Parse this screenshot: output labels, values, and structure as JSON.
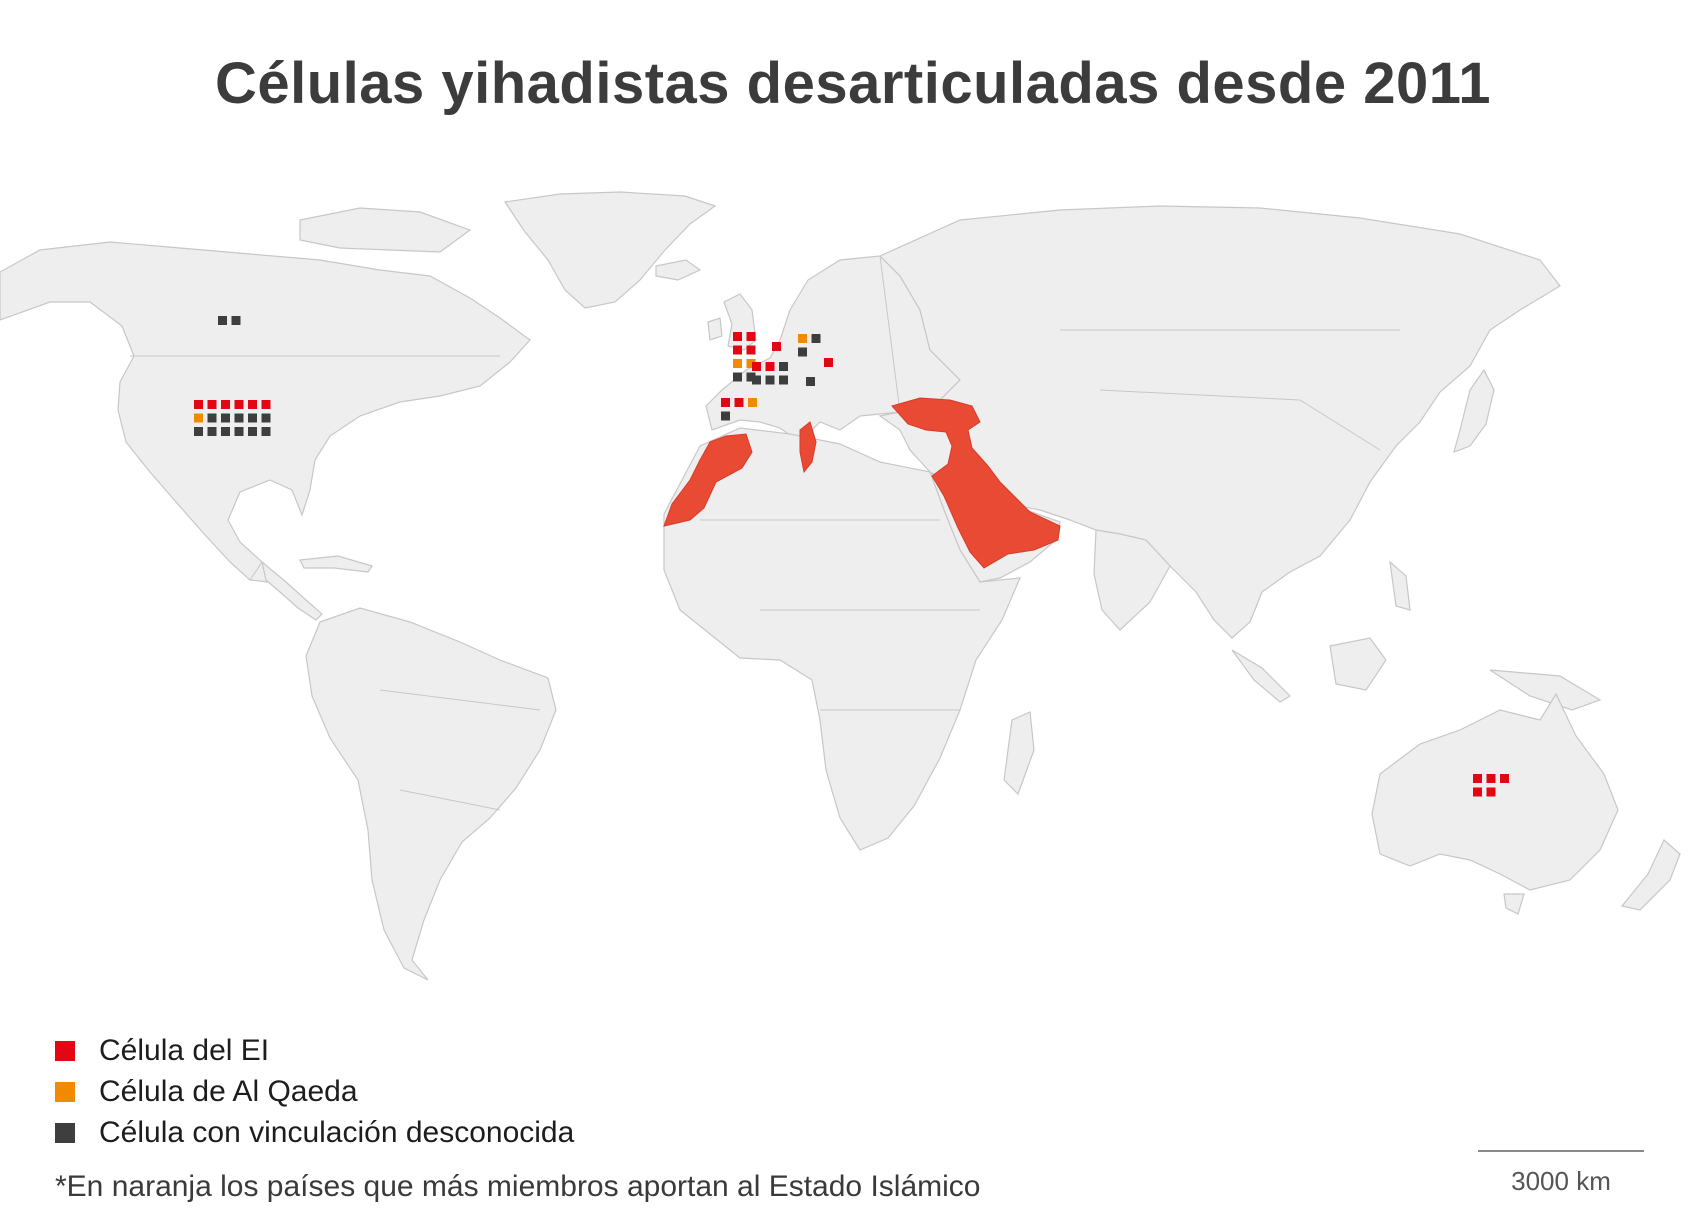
{
  "title": "Células yihadistas desarticuladas desde 2011",
  "legend": [
    {
      "label": "Célula del EI",
      "color": "#e30613"
    },
    {
      "label": "Célula de Al Qaeda",
      "color": "#f28a00"
    },
    {
      "label": "Célula con vinculación desconocida",
      "color": "#3e3e3e"
    }
  ],
  "note": "*En naranja los países que más miembros aportan al Estado Islámico",
  "scale": {
    "label": "3000 km"
  },
  "highlight_color": "#e84a34",
  "highlighted_regions": [
    "Marruecos",
    "Túnez",
    "Turquía",
    "Siria",
    "Irak",
    "Arabia Saudí",
    "Jordania",
    "Kuwait"
  ],
  "cells": [
    {
      "country": "Canadá",
      "ei": 0,
      "al_qaeda": 0,
      "unknown": 2
    },
    {
      "country": "Estados Unidos",
      "ei": 6,
      "al_qaeda": 1,
      "unknown": 11
    },
    {
      "country": "Reino Unido",
      "ei": 4,
      "al_qaeda": 2,
      "unknown": 2
    },
    {
      "country": "Bélgica",
      "ei": 1,
      "al_qaeda": 0,
      "unknown": 0
    },
    {
      "country": "Francia",
      "ei": 2,
      "al_qaeda": 0,
      "unknown": 4
    },
    {
      "country": "Alemania",
      "ei": 0,
      "al_qaeda": 1,
      "unknown": 2
    },
    {
      "country": "Austria",
      "ei": 1,
      "al_qaeda": 0,
      "unknown": 0
    },
    {
      "country": "Italia",
      "ei": 0,
      "al_qaeda": 0,
      "unknown": 1
    },
    {
      "country": "España",
      "ei": 2,
      "al_qaeda": 1,
      "unknown": 1
    },
    {
      "country": "Australia",
      "ei": 5,
      "al_qaeda": 0,
      "unknown": 0
    }
  ]
}
